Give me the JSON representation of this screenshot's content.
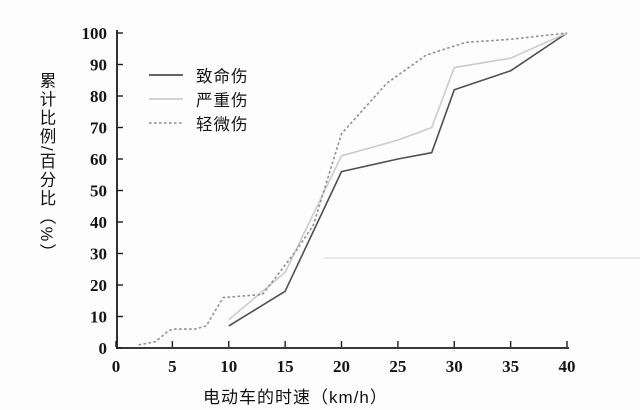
{
  "colors": {
    "background": "#fdfdfd",
    "axis": "#1c1c1c",
    "text": "#111111",
    "fatal_line": "#4f4f4f",
    "serious_line": "#cbcbcb",
    "minor_line": "#8f8f8f"
  },
  "chart_data": {
    "type": "line",
    "title": "",
    "xlabel": "电动车的时速（km/h）",
    "ylabel": "累计比例/百分比（%）",
    "xlim": [
      0,
      40
    ],
    "ylim": [
      0,
      100
    ],
    "xticks": [
      0,
      5,
      10,
      15,
      20,
      25,
      30,
      35,
      40
    ],
    "yticks": [
      0,
      10,
      20,
      30,
      40,
      50,
      60,
      70,
      80,
      90,
      100
    ],
    "grid": false,
    "legend_position": "upper-left-inside",
    "series": [
      {
        "key": "fatal",
        "name": "致命伤",
        "style": "solid",
        "color": "#4f4f4f",
        "points": [
          [
            10,
            7
          ],
          [
            15,
            18
          ],
          [
            20,
            56
          ],
          [
            25,
            60
          ],
          [
            28,
            62
          ],
          [
            30,
            82
          ],
          [
            35,
            88
          ],
          [
            40,
            100
          ]
        ]
      },
      {
        "key": "serious",
        "name": "严重伤",
        "style": "solid",
        "color": "#cbcbcb",
        "points": [
          [
            10,
            9
          ],
          [
            15,
            24
          ],
          [
            20,
            61
          ],
          [
            25,
            66
          ],
          [
            28,
            70
          ],
          [
            30,
            89
          ],
          [
            35,
            92
          ],
          [
            40,
            100
          ]
        ]
      },
      {
        "key": "minor",
        "name": "轻微伤",
        "style": "dotted",
        "color": "#8f8f8f",
        "points": [
          [
            2,
            1
          ],
          [
            3.5,
            2
          ],
          [
            4.5,
            5
          ],
          [
            5,
            6
          ],
          [
            7,
            6
          ],
          [
            8,
            7
          ],
          [
            9.5,
            16
          ],
          [
            13,
            17
          ],
          [
            16,
            31
          ],
          [
            17.5,
            39
          ],
          [
            20,
            68
          ],
          [
            24,
            84
          ],
          [
            27.5,
            93
          ],
          [
            31,
            97
          ],
          [
            35,
            98
          ],
          [
            40,
            100
          ]
        ]
      }
    ]
  }
}
